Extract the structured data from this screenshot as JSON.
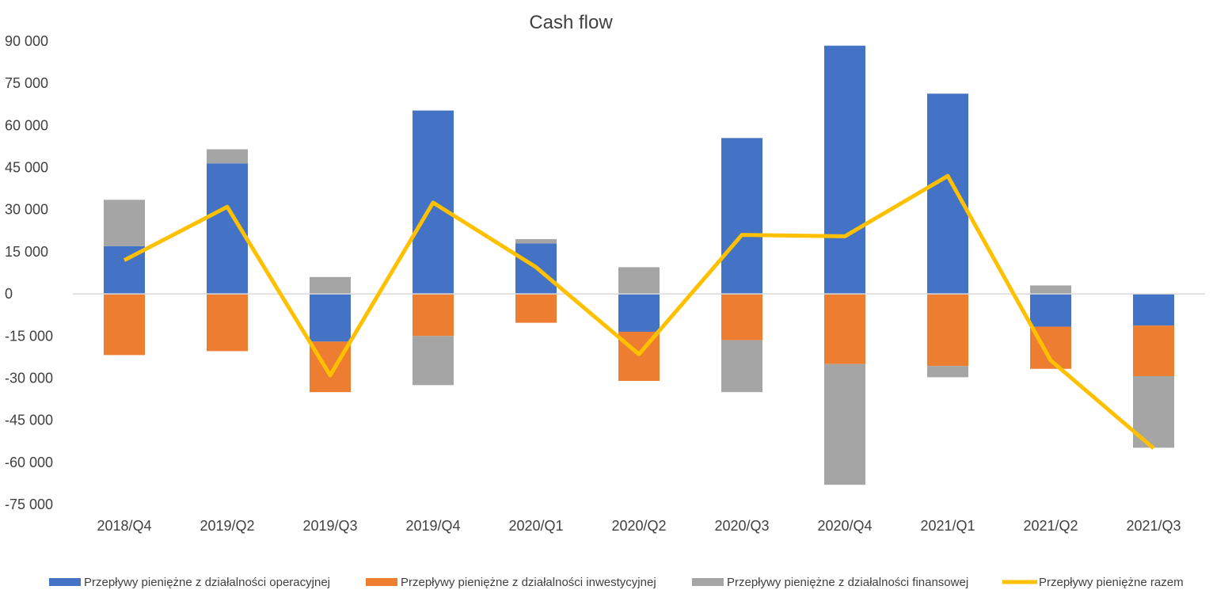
{
  "chart_data": {
    "type": "bar",
    "stacked": true,
    "title": "Cash flow",
    "xlabel": "",
    "ylabel": "",
    "categories": [
      "2018/Q4",
      "2019/Q2",
      "2019/Q3",
      "2019/Q4",
      "2020/Q1",
      "2020/Q2",
      "2020/Q3",
      "2020/Q4",
      "2021/Q1",
      "2021/Q2",
      "2021/Q3"
    ],
    "ylim": [
      -75000,
      90000
    ],
    "yticks": [
      90000,
      75000,
      60000,
      45000,
      30000,
      15000,
      0,
      -15000,
      -30000,
      -45000,
      -60000,
      -75000
    ],
    "ytick_labels": [
      "90 000",
      "75 000",
      "60 000",
      "45 000",
      "30 000",
      "15 000",
      "0",
      "-15 000",
      "-30 000",
      "-45 000",
      "-60 000",
      "-75 000"
    ],
    "grid": false,
    "legend_position": "bottom",
    "series": [
      {
        "name": "Przepływy pieniężne z działalności operacyjnej",
        "kind": "bar",
        "color": "#4472C4",
        "values": [
          17000,
          46500,
          -17000,
          65300,
          18000,
          -13500,
          55500,
          88400,
          71300,
          -11700,
          -11300
        ]
      },
      {
        "name": "Przepływy pieniężne z działalności inwestycyjnej",
        "kind": "bar",
        "color": "#ED7D31",
        "values": [
          -21800,
          -20400,
          -18000,
          -15000,
          -10300,
          -17500,
          -16500,
          -25000,
          -25700,
          -15000,
          -18000
        ]
      },
      {
        "name": "Przepływy pieniężne z działalności finansowej",
        "kind": "bar",
        "color": "#A5A5A5",
        "values": [
          16500,
          5000,
          6000,
          -17500,
          1500,
          9500,
          -18500,
          -43000,
          -4000,
          3000,
          -25500
        ]
      },
      {
        "name": "Przepływy pieniężne razem",
        "kind": "line",
        "color": "#FFC000",
        "values": [
          12000,
          31000,
          -29000,
          32500,
          9500,
          -21500,
          21000,
          20500,
          42000,
          -23700,
          -55000
        ]
      }
    ]
  }
}
